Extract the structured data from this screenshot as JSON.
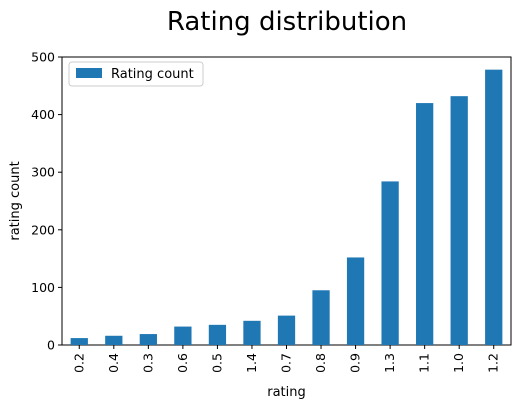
{
  "chart_data": {
    "type": "bar",
    "title": "Rating distribution",
    "xlabel": "rating",
    "ylabel": "rating count",
    "categories": [
      "0.2",
      "0.4",
      "0.3",
      "0.6",
      "0.5",
      "1.4",
      "0.7",
      "0.8",
      "0.9",
      "1.3",
      "1.1",
      "1.0",
      "1.2"
    ],
    "series": [
      {
        "name": "Rating count",
        "values": [
          12,
          16,
          19,
          32,
          35,
          42,
          51,
          95,
          152,
          284,
          420,
          432,
          478
        ],
        "color": "#1f77b4"
      }
    ],
    "ylim": [
      0,
      500
    ],
    "yticks": [
      0,
      100,
      200,
      300,
      400,
      500
    ],
    "grid": false,
    "legend_position": "top-left"
  }
}
